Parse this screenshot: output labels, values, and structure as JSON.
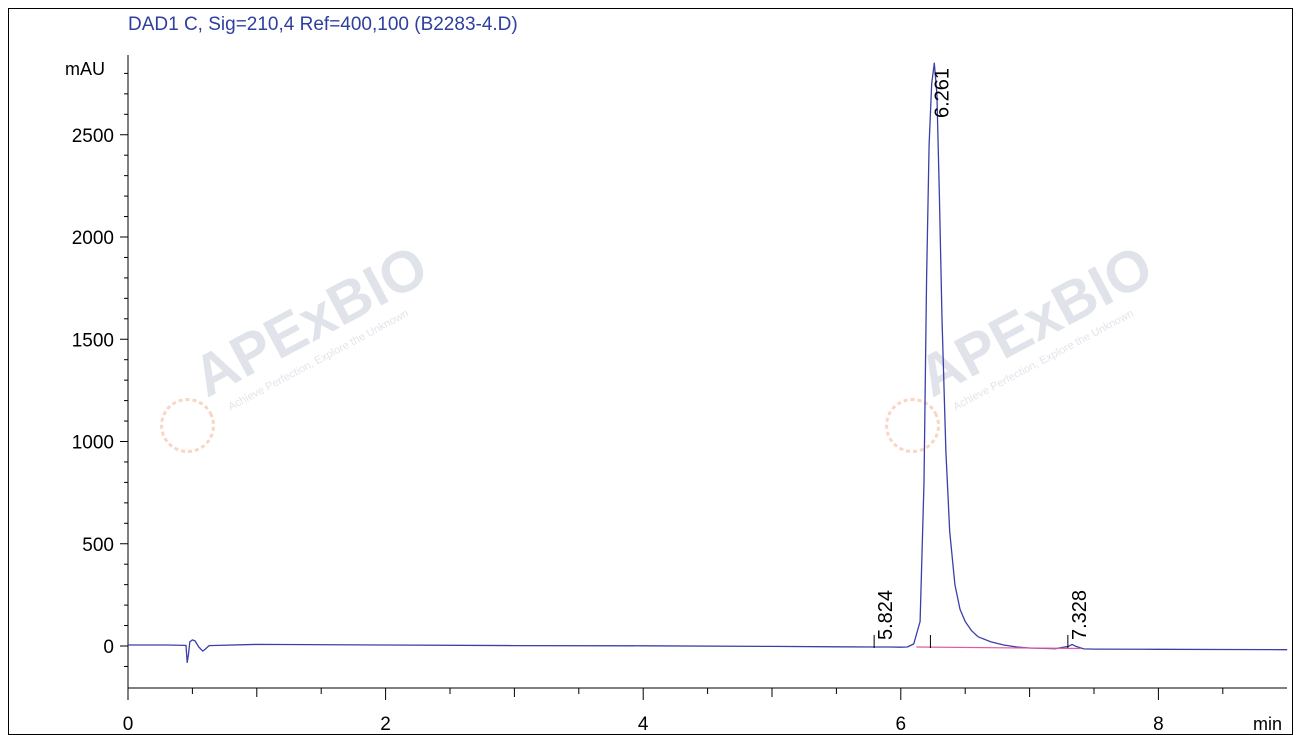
{
  "chart_data": {
    "type": "line",
    "title": "DAD1 C, Sig=210,4 Ref=400,100 (B2283-4.D)",
    "ylabel": "mAU",
    "xlabel": "min",
    "xlim": [
      0,
      9
    ],
    "ylim": [
      -200,
      2850
    ],
    "x_ticks": [
      "0",
      "2",
      "4",
      "6",
      "8"
    ],
    "y_ticks": [
      "0",
      "500",
      "1000",
      "1500",
      "2000",
      "2500"
    ],
    "grid": false,
    "series": [
      {
        "color": "#3b3fa8",
        "x": [
          0.0,
          0.3,
          0.45,
          0.46,
          0.47,
          0.48,
          0.5,
          0.52,
          0.55,
          0.58,
          0.6,
          0.63,
          0.7,
          1.0,
          2.0,
          3.0,
          4.0,
          5.0,
          5.5,
          5.8,
          5.9,
          6.0,
          6.05,
          6.1,
          6.15,
          6.18,
          6.2,
          6.22,
          6.24,
          6.26,
          6.28,
          6.3,
          6.32,
          6.35,
          6.38,
          6.42,
          6.46,
          6.5,
          6.55,
          6.6,
          6.7,
          6.8,
          6.9,
          7.0,
          7.2,
          7.3,
          7.33,
          7.36,
          7.42,
          7.5,
          8.0,
          8.5,
          9.0
        ],
        "y": [
          5,
          5,
          3,
          -80,
          -40,
          20,
          30,
          25,
          -5,
          -25,
          -15,
          2,
          3,
          8,
          5,
          2,
          1,
          -2,
          -4,
          -5,
          -5,
          -6,
          -5,
          10,
          120,
          800,
          1800,
          2450,
          2750,
          2850,
          2700,
          2200,
          1600,
          950,
          560,
          300,
          180,
          120,
          75,
          45,
          20,
          5,
          -5,
          -10,
          -13,
          -2,
          8,
          -2,
          -14,
          -15,
          -16,
          -17,
          -18
        ]
      },
      {
        "color": "#e05aa0",
        "x": [
          6.12,
          7.4
        ],
        "y": [
          -5,
          -12
        ]
      }
    ],
    "peak_labels": [
      {
        "x": 5.824,
        "label": "5.824"
      },
      {
        "x": 6.261,
        "label": "6.261"
      },
      {
        "x": 7.328,
        "label": "7.328"
      }
    ]
  },
  "watermark": {
    "brand": "APExBIO",
    "tagline": "Achieve Perfection, Explore the Unknown"
  }
}
